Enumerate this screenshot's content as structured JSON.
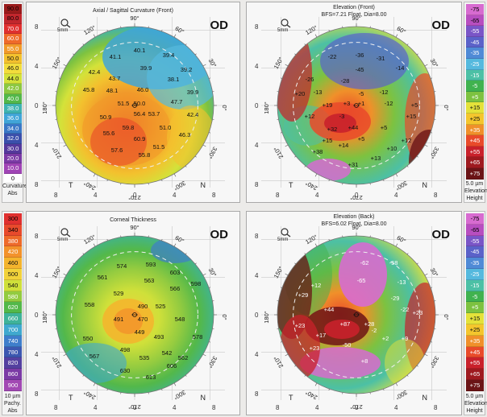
{
  "legends": {
    "top_left": {
      "values": [
        "90.0",
        "80.0",
        "70.0",
        "60.0",
        "55.0",
        "50.0",
        "46.0",
        "44.0",
        "42.0",
        "40.0",
        "38.0",
        "36.0",
        "34.0",
        "32.0",
        "30.0",
        "20.0",
        "10.0",
        "0"
      ],
      "colors": [
        "#9a1b1b",
        "#c1272d",
        "#e0302f",
        "#ef6a2a",
        "#f19a2a",
        "#f3c12e",
        "#f2dd3c",
        "#d3e23a",
        "#8cc841",
        "#53b84a",
        "#3fb3b1",
        "#41a5d8",
        "#3a78c6",
        "#3b4fab",
        "#55399c",
        "#7b3aa5",
        "#a045b5",
        "#ffffff"
      ],
      "foot": [
        "Curvature",
        "Abs"
      ]
    },
    "top_right": {
      "values": [
        "-75",
        "-65",
        "-55",
        "-45",
        "-35",
        "-25",
        "-15",
        "-5",
        "+5",
        "+15",
        "+25",
        "+35",
        "+45",
        "+55",
        "+65",
        "+75"
      ],
      "colors": [
        "#d76bd0",
        "#b84ec0",
        "#7a55c7",
        "#5b62c9",
        "#4f8ad6",
        "#55b9de",
        "#4cc0a5",
        "#40b24f",
        "#7dc240",
        "#e4e23a",
        "#f4c62d",
        "#f0902a",
        "#e94a2a",
        "#c9212b",
        "#9e1a1f",
        "#6b1416"
      ],
      "foot": [
        "5.0 µm",
        "Elevation",
        "Height"
      ]
    },
    "bottom_left": {
      "values": [
        "300",
        "340",
        "380",
        "420",
        "460",
        "500",
        "540",
        "580",
        "620",
        "660",
        "700",
        "740",
        "780",
        "820",
        "860",
        "900"
      ],
      "colors": [
        "#e0302f",
        "#e84a2c",
        "#ee6a2a",
        "#f3922b",
        "#f4b42d",
        "#f2d23a",
        "#cfe03a",
        "#93cb40",
        "#53b84a",
        "#3fb39a",
        "#40a9cf",
        "#3f7ecb",
        "#3c57b0",
        "#5440a0",
        "#7b3aa5",
        "#a249b3"
      ],
      "foot": [
        "10 µm",
        "Pachy.",
        "Abs"
      ]
    },
    "bottom_right": {
      "values": [
        "-75",
        "-65",
        "-55",
        "-45",
        "-35",
        "-25",
        "-15",
        "-5",
        "+5",
        "+15",
        "+25",
        "+35",
        "+45",
        "+55",
        "+65",
        "+75"
      ],
      "colors": [
        "#d76bd0",
        "#b84ec0",
        "#7a55c7",
        "#5b62c9",
        "#4f8ad6",
        "#55b9de",
        "#4cc0a5",
        "#40b24f",
        "#7dc240",
        "#e4e23a",
        "#f4c62d",
        "#f0902a",
        "#e94a2a",
        "#c9212b",
        "#9e1a1f",
        "#6b1416"
      ],
      "foot": [
        "5.0 µm",
        "Elevation",
        "Height"
      ]
    }
  },
  "maps": {
    "axial": {
      "title": "Axial / Sagittal Curvature (Front)",
      "od": "OD",
      "angles": [
        "90°",
        "60°",
        "30°",
        "0°",
        "330°",
        "300°",
        "270°",
        "240°",
        "210°",
        "180°",
        "150°",
        "120°"
      ],
      "t": "T",
      "n": "N",
      "scale_icon_label": "5mm",
      "ticks": [
        "8",
        "4",
        "0",
        "4",
        "8"
      ],
      "values": [
        "40.1",
        "39.4",
        "41.1",
        "39.9",
        "39.2",
        "42.4",
        "43.7",
        "38.1",
        "45.8",
        "48.1",
        "46.0",
        "39.9",
        "51.5",
        "50.0",
        "47.7",
        "50.9",
        "56.4",
        "53.7",
        "42.4",
        "59.8",
        "51.0",
        "55.6",
        "60.9",
        "46.3",
        "57.6",
        "51.5",
        "55.8"
      ]
    },
    "elev_front": {
      "title": "Elevation (Front)",
      "subtitle": "BFS=7.21 Float, Dia=8.00",
      "od": "OD",
      "angles": [
        "90°",
        "60°",
        "30°",
        "0°",
        "330°",
        "300°",
        "270°",
        "240°",
        "210°",
        "180°",
        "150°",
        "120°"
      ],
      "t": "T",
      "n": "N",
      "scale_icon_label": "5mm",
      "ticks": [
        "8",
        "4",
        "0",
        "4",
        "8"
      ],
      "values": [
        "-22",
        "-36",
        "-31",
        "-45",
        "-14",
        "-26",
        "-28",
        "+20",
        "-13",
        "-5",
        "-12",
        "+19",
        "+3",
        "+1",
        "-12",
        "+5",
        "+12",
        "-3",
        "+15",
        "+32",
        "+44",
        "+5",
        "+5",
        "+12",
        "+15",
        "+14",
        "+10",
        "+38",
        "+13",
        "+31"
      ]
    },
    "thickness": {
      "title": "Corneal Thickness",
      "od": "OD",
      "angles": [
        "90°",
        "60°",
        "30°",
        "0°",
        "330°",
        "300°",
        "270°",
        "240°",
        "210°",
        "180°",
        "150°",
        "120°"
      ],
      "t": "T",
      "n": "N",
      "scale_icon_label": "5mm",
      "ticks": [
        "8",
        "4",
        "0",
        "4",
        "8"
      ],
      "values": [
        "574",
        "593",
        "603",
        "561",
        "563",
        "566",
        "598",
        "529",
        "490",
        "525",
        "558",
        "491",
        "470",
        "548",
        "550",
        "449",
        "493",
        "578",
        "498",
        "542",
        "567",
        "535",
        "562",
        "630",
        "613",
        "606"
      ]
    },
    "elev_back": {
      "title": "Elevation (Back)",
      "subtitle": "BFS=6.02 Float, Dia=8.00",
      "od": "OD",
      "angles": [
        "90°",
        "60°",
        "30°",
        "0°",
        "330°",
        "300°",
        "270°",
        "240°",
        "210°",
        "180°",
        "150°",
        "120°"
      ],
      "t": "T",
      "n": "N",
      "scale_icon_label": "5mm",
      "ticks": [
        "8",
        "4",
        "0",
        "4",
        "8"
      ],
      "values": [
        "-62",
        "-58",
        "+12",
        "-65",
        "-13",
        "+29",
        "-29",
        "-22",
        "+44",
        "+87",
        "+28",
        "+23",
        "+23",
        "-2",
        "+2",
        "+9",
        "+17",
        "-50",
        "+23",
        "+8"
      ]
    }
  },
  "footer_units": [
    "5.0 µm",
    "10 µm"
  ]
}
